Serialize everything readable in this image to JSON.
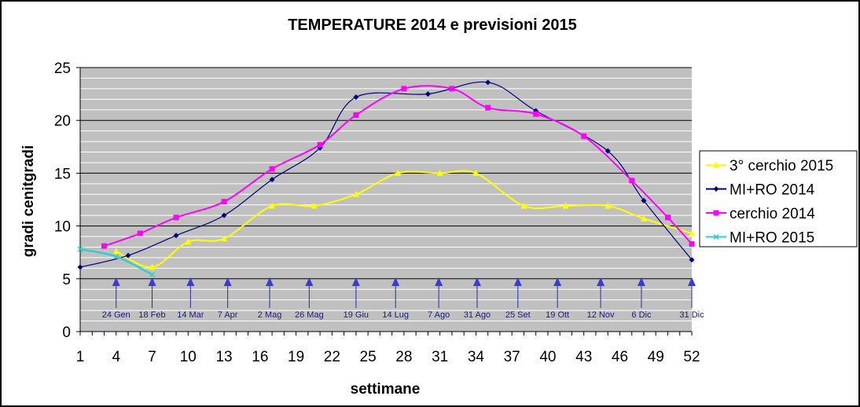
{
  "chart_data": {
    "type": "line",
    "title": "TEMPERATURE 2014 e previsioni 2015",
    "xlabel": "settimane",
    "ylabel": "gradi cenitgradi",
    "ylim": [
      0,
      25
    ],
    "xlim": [
      1,
      52
    ],
    "yticks": [
      "0",
      "5",
      "10",
      "15",
      "20",
      "25"
    ],
    "xticks": [
      "1",
      "4",
      "7",
      "10",
      "13",
      "16",
      "19",
      "22",
      "25",
      "28",
      "31",
      "34",
      "37",
      "40",
      "43",
      "46",
      "49",
      "52"
    ],
    "grid": true,
    "legend_position": "right",
    "series": [
      {
        "name": "3° cerchio 2015",
        "color": "#ffff00",
        "marker": "triangle",
        "points": [
          [
            4,
            7.6
          ],
          [
            7,
            6.1
          ],
          [
            10,
            8.5
          ],
          [
            13,
            8.8
          ],
          [
            17,
            11.9
          ],
          [
            20.5,
            11.9
          ],
          [
            24,
            13.0
          ],
          [
            27.5,
            15.0
          ],
          [
            31,
            15.0
          ],
          [
            34,
            15.0
          ],
          [
            38,
            11.9
          ],
          [
            41.5,
            11.9
          ],
          [
            45,
            11.9
          ],
          [
            48,
            10.7
          ],
          [
            52,
            9.3
          ]
        ]
      },
      {
        "name": "MI+RO 2014",
        "color": "#000080",
        "marker": "diamond",
        "points": [
          [
            1,
            6.1
          ],
          [
            5,
            7.2
          ],
          [
            9,
            9.1
          ],
          [
            13,
            11.0
          ],
          [
            17,
            14.4
          ],
          [
            21,
            17.4
          ],
          [
            24,
            22.2
          ],
          [
            30,
            22.5
          ],
          [
            35,
            23.6
          ],
          [
            39,
            20.9
          ],
          [
            45,
            17.1
          ],
          [
            48,
            12.4
          ],
          [
            52,
            6.8
          ]
        ]
      },
      {
        "name": "cerchio 2014",
        "color": "#ff00ff",
        "marker": "square",
        "points": [
          [
            3,
            8.1
          ],
          [
            6,
            9.3
          ],
          [
            9,
            10.8
          ],
          [
            13,
            12.3
          ],
          [
            17,
            15.4
          ],
          [
            21,
            17.7
          ],
          [
            24,
            20.5
          ],
          [
            28,
            23.0
          ],
          [
            32,
            23.0
          ],
          [
            35,
            21.2
          ],
          [
            39,
            20.6
          ],
          [
            43,
            18.5
          ],
          [
            47,
            14.3
          ],
          [
            50,
            10.8
          ],
          [
            52,
            8.3
          ]
        ]
      },
      {
        "name": "MI+RO 2015",
        "color": "#33cccc",
        "marker": "x",
        "points": [
          [
            1,
            7.8
          ],
          [
            4,
            7.1
          ],
          [
            7,
            5.4
          ]
        ]
      }
    ],
    "annotations": [
      {
        "x": 4,
        "label": "24 Gen"
      },
      {
        "x": 7,
        "label": "18 Feb"
      },
      {
        "x": 10.2,
        "label": "14 Mar"
      },
      {
        "x": 13.3,
        "label": "7 Apr"
      },
      {
        "x": 16.8,
        "label": "2 Mag"
      },
      {
        "x": 20.1,
        "label": "26 Mag"
      },
      {
        "x": 24,
        "label": "19 Giu"
      },
      {
        "x": 27.3,
        "label": "14 Lug"
      },
      {
        "x": 30.9,
        "label": "7 Ago"
      },
      {
        "x": 34.1,
        "label": "31 Ago"
      },
      {
        "x": 37.5,
        "label": "25 Set"
      },
      {
        "x": 40.8,
        "label": "19 Ott"
      },
      {
        "x": 44.4,
        "label": "12 Nov"
      },
      {
        "x": 47.8,
        "label": "6 Dic"
      },
      {
        "x": 52,
        "label": "31 Dic"
      }
    ]
  }
}
